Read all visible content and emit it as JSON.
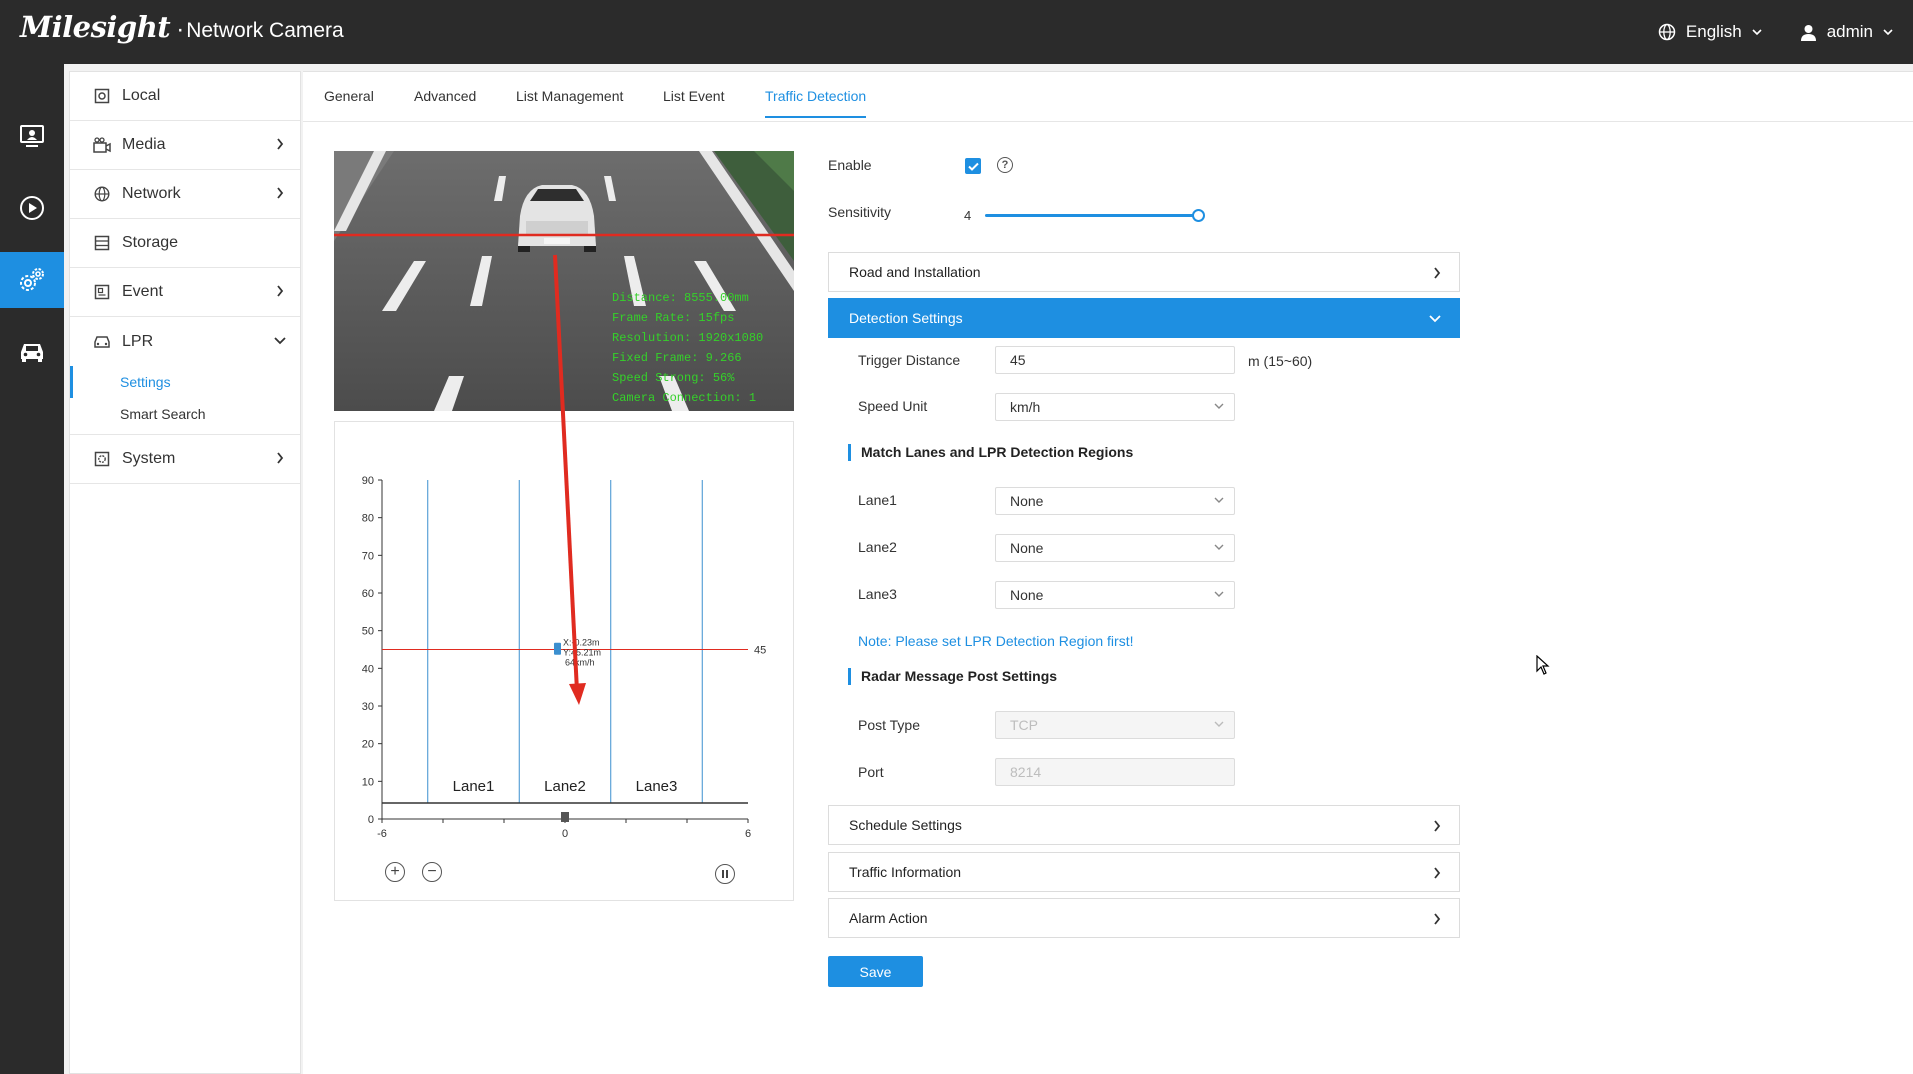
{
  "header": {
    "brand": "Milesight",
    "product": "Network Camera",
    "language": "English",
    "user": "admin"
  },
  "rail": {
    "items": [
      {
        "icon": "live-view-icon"
      },
      {
        "icon": "playback-icon"
      },
      {
        "icon": "settings-gear-icon",
        "active": true
      },
      {
        "icon": "vehicle-icon"
      }
    ]
  },
  "sidebar": {
    "items": [
      {
        "label": "Local",
        "icon": "local-icon"
      },
      {
        "label": "Media",
        "icon": "media-icon"
      },
      {
        "label": "Network",
        "icon": "network-globe-icon"
      },
      {
        "label": "Storage",
        "icon": "storage-icon"
      },
      {
        "label": "Event",
        "icon": "event-icon"
      },
      {
        "label": "LPR",
        "icon": "lpr-car-icon"
      },
      {
        "label": "System",
        "icon": "system-icon"
      }
    ],
    "lpr_sub": [
      "Settings",
      "Smart Search"
    ]
  },
  "tabs": [
    "General",
    "Advanced",
    "List Management",
    "List Event",
    "Traffic Detection"
  ],
  "video": {
    "osd": [
      "Distance: 8555.00mm",
      "Frame Rate: 15fps",
      "Resolution: 1920x1080",
      "Fixed Frame: 9.266",
      "Speed Strong: 56%",
      "Camera Connection: 1"
    ]
  },
  "chart_data": {
    "type": "scatter",
    "xlim": [
      -6,
      6
    ],
    "ylim": [
      0,
      90
    ],
    "x_ticks": [
      -6,
      0,
      6
    ],
    "y_ticks": [
      0,
      10,
      20,
      30,
      40,
      50,
      60,
      70,
      80,
      90
    ],
    "lane_labels": [
      "Lane1",
      "Lane2",
      "Lane3"
    ],
    "trigger_line": 45,
    "target": {
      "x": -0.23,
      "y": 45.21,
      "speed": "64km/h",
      "label_x": "X:-0.23m",
      "label_y": "Y:45.21m"
    }
  },
  "form": {
    "enable_label": "Enable",
    "enabled": true,
    "sensitivity_label": "Sensitivity",
    "sensitivity": "4",
    "sections": {
      "road": "Road and Installation",
      "detection": "Detection Settings",
      "schedule": "Schedule Settings",
      "traffic": "Traffic Information",
      "alarm": "Alarm Action"
    },
    "trigger_distance_label": "Trigger Distance",
    "trigger_distance": "45",
    "trigger_unit": "m (15~60)",
    "speed_unit_label": "Speed Unit",
    "speed_unit": "km/h",
    "match_title": "Match Lanes and LPR Detection Regions",
    "lanes": [
      {
        "label": "Lane1",
        "value": "None"
      },
      {
        "label": "Lane2",
        "value": "None"
      },
      {
        "label": "Lane3",
        "value": "None"
      }
    ],
    "note": "Note: Please set LPR Detection Region first!",
    "radar_title": "Radar Message Post Settings",
    "post_type_label": "Post Type",
    "post_type": "TCP",
    "port_label": "Port",
    "port": "8214",
    "save": "Save"
  },
  "colors": {
    "accent": "#1e8fe1",
    "topbar": "#2b2b2b",
    "trigger_line": "#e02b20"
  }
}
